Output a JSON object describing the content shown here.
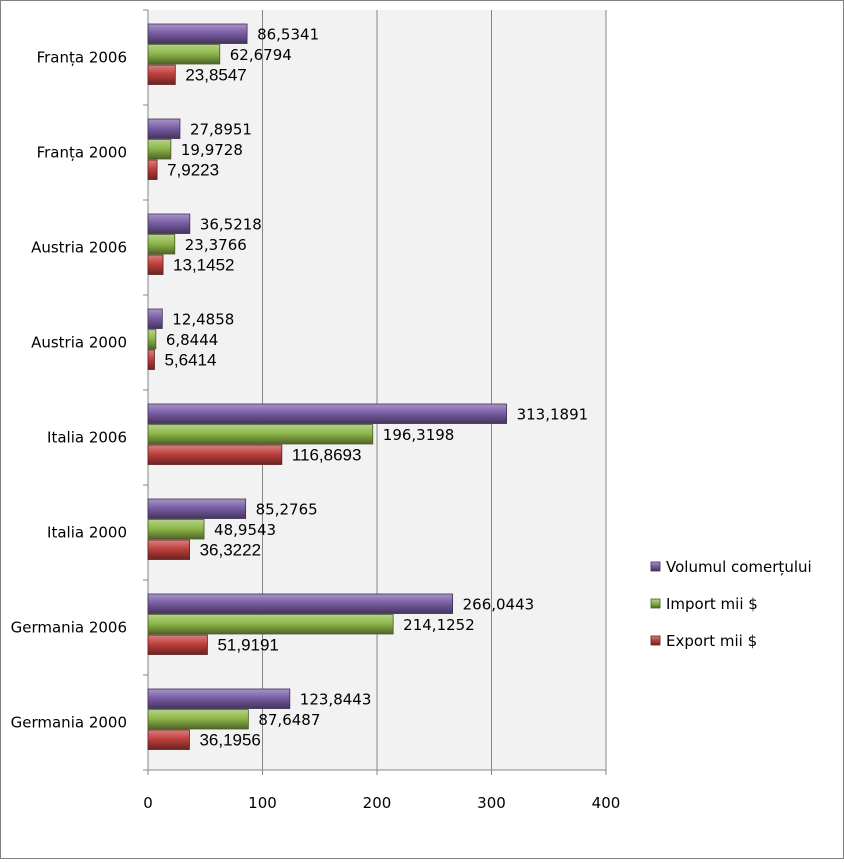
{
  "chart_data": {
    "type": "bar",
    "orientation": "horizontal",
    "categories": [
      "Franța 2006",
      "Franța 2000",
      "Austria 2006",
      "Austria 2000",
      "Italia 2006",
      "Italia 2000",
      "Germania 2006",
      "Germania 2000"
    ],
    "series": [
      {
        "name": "Volumul comerțului",
        "color": "#7b5ea7",
        "values": [
          86.5341,
          27.8951,
          36.5218,
          12.4858,
          313.1891,
          85.2765,
          266.0443,
          123.8443
        ],
        "labels": [
          "86,5341",
          "27,8951",
          "36,5218",
          "12,4858",
          "313,1891",
          "85,2765",
          "266,0443",
          "123,8443"
        ]
      },
      {
        "name": "Import mii $",
        "color": "#8fb84a",
        "values": [
          62.6794,
          19.9728,
          23.3766,
          6.8444,
          196.3198,
          48.9543,
          214.1252,
          87.6487
        ],
        "labels": [
          "62,6794",
          "19,9728",
          "23,3766",
          "6,8444",
          "196,3198",
          "48,9543",
          "214,1252",
          "87,6487"
        ]
      },
      {
        "name": "Export mii $",
        "color": "#c0403d",
        "values": [
          23.8547,
          7.9223,
          13.1452,
          5.6414,
          116.8693,
          36.3222,
          51.9191,
          36.1956
        ],
        "labels": [
          "23,8547",
          "7,9223",
          "13,1452",
          "5,6414",
          "116,8693",
          "36,3222",
          "51,9191",
          "36,1956"
        ]
      }
    ],
    "xlim": [
      0,
      400
    ],
    "xticks": [
      "0",
      "100",
      "200",
      "300",
      "400"
    ],
    "grid": true,
    "legend_position": "right"
  }
}
